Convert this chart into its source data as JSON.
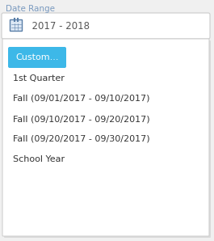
{
  "label_text": "Date Range",
  "label_color": "#7a9abf",
  "input_text": "  2017 - 2018",
  "input_border_color": "#cccccc",
  "input_bg": "#ffffff",
  "calendar_icon_color": "#5a7fa8",
  "dropdown_bg": "#ffffff",
  "dropdown_border": "#d0d0d0",
  "button_text": "Custom...",
  "button_bg": "#3db8e8",
  "button_text_color": "#ffffff",
  "menu_items": [
    "1st Quarter",
    "Fall (09/01/2017 - 09/10/2017)",
    "Fall (09/10/2017 - 09/20/2017)",
    "Fall (09/20/2017 - 09/30/2017)",
    "School Year"
  ],
  "menu_item_color": "#333333",
  "fig_bg": "#f0f0f0",
  "figsize": [
    2.65,
    2.98
  ],
  "dpi": 100
}
